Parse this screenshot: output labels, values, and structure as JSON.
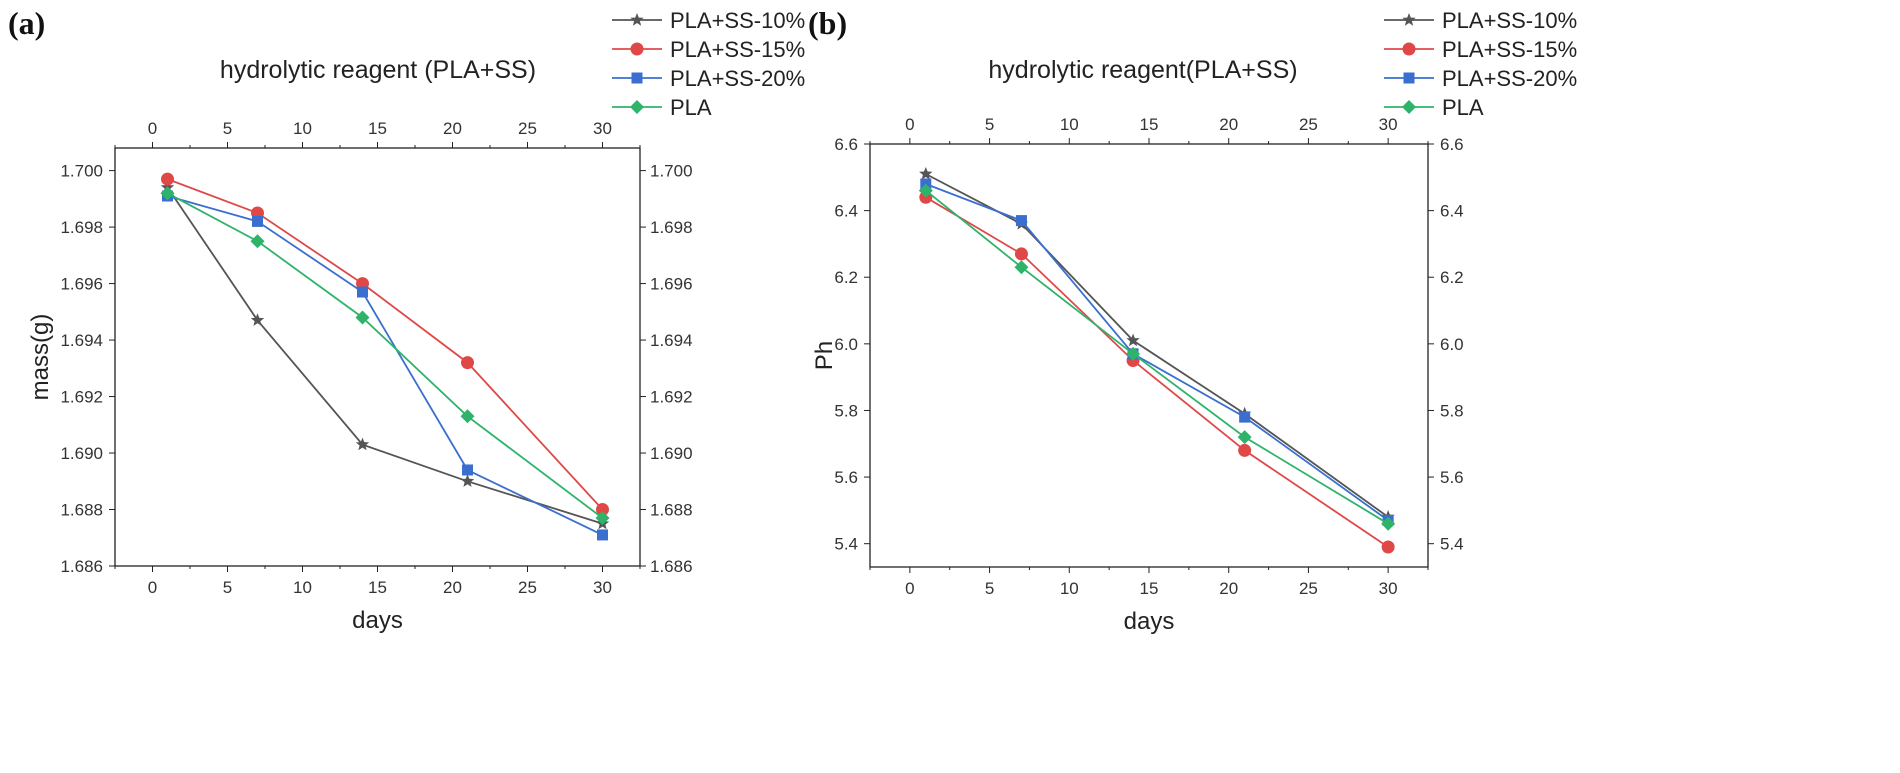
{
  "chart_data": [
    {
      "panel_label": "(a)",
      "type": "line",
      "title": "hydrolytic reagent (PLA+SS)",
      "xlabel": "days",
      "ylabel": "mass(g)",
      "xlim": [
        -2.5,
        32.5
      ],
      "ylim": [
        1.686,
        1.7008
      ],
      "x_ticks": [
        0,
        5,
        10,
        15,
        20,
        25,
        30
      ],
      "y_ticks": [
        1.686,
        1.688,
        1.69,
        1.692,
        1.694,
        1.696,
        1.698,
        1.7
      ],
      "y_tick_labels": [
        "1.686",
        "1.688",
        "1.690",
        "1.692",
        "1.694",
        "1.696",
        "1.698",
        "1.700"
      ],
      "top_axis": true,
      "right_axis": true,
      "legend_position": "top-right, outside plot",
      "x": [
        1,
        7,
        14,
        21,
        30
      ],
      "series": [
        {
          "name": "PLA+SS-10%",
          "color": "#555555",
          "marker": "star",
          "values": [
            1.6994,
            1.6947,
            1.6903,
            1.689,
            1.6875
          ]
        },
        {
          "name": "PLA+SS-15%",
          "color": "#e04848",
          "marker": "circle",
          "values": [
            1.6997,
            1.6985,
            1.696,
            1.6932,
            1.688
          ]
        },
        {
          "name": "PLA+SS-20%",
          "color": "#3a6fcf",
          "marker": "square",
          "values": [
            1.6991,
            1.6982,
            1.6957,
            1.6894,
            1.6871
          ]
        },
        {
          "name": "PLA",
          "color": "#2fb36b",
          "marker": "diamond",
          "values": [
            1.6992,
            1.6975,
            1.6948,
            1.6913,
            1.6877
          ]
        }
      ]
    },
    {
      "panel_label": "(b)",
      "type": "line",
      "title": "hydrolytic reagent(PLA+SS)",
      "xlabel": "days",
      "ylabel": "Ph",
      "xlim": [
        -2.5,
        32.5
      ],
      "ylim": [
        5.33,
        6.6
      ],
      "x_ticks": [
        0,
        5,
        10,
        15,
        20,
        25,
        30
      ],
      "y_ticks": [
        5.4,
        5.6,
        5.8,
        6.0,
        6.2,
        6.4,
        6.6
      ],
      "y_tick_labels": [
        "5.4",
        "5.6",
        "5.8",
        "6.0",
        "6.2",
        "6.4",
        "6.6"
      ],
      "top_axis": true,
      "right_axis": true,
      "legend_position": "top-right, outside plot",
      "x": [
        1,
        7,
        14,
        21,
        30
      ],
      "series": [
        {
          "name": "PLA+SS-10%",
          "color": "#555555",
          "marker": "star",
          "values": [
            6.51,
            6.36,
            6.01,
            5.79,
            5.48
          ]
        },
        {
          "name": "PLA+SS-15%",
          "color": "#e04848",
          "marker": "circle",
          "values": [
            6.44,
            6.27,
            5.95,
            5.68,
            5.39
          ]
        },
        {
          "name": "PLA+SS-20%",
          "color": "#3a6fcf",
          "marker": "square",
          "values": [
            6.48,
            6.37,
            5.97,
            5.78,
            5.47
          ]
        },
        {
          "name": "PLA",
          "color": "#2fb36b",
          "marker": "diamond",
          "values": [
            6.46,
            6.23,
            5.97,
            5.72,
            5.46
          ]
        }
      ]
    }
  ]
}
